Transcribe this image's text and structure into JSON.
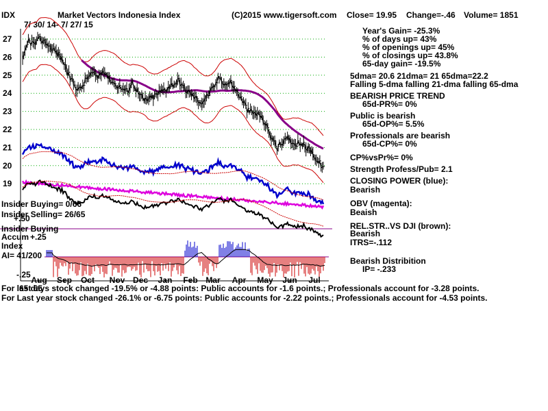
{
  "header": {
    "ticker": "IDX",
    "name": "Market Vectors Indonesia Index",
    "copyright": "(C)2015 www.tigersoft.com",
    "close": "Close=  19.95",
    "change": "Change=-.46",
    "volume": "Volume= 1851",
    "date_range": "7/ 30/ 14-  7/ 27/ 15"
  },
  "stats": {
    "years_gain": "Year's Gain= -25.3%",
    "pct_days_up": "% of days up= 43%",
    "pct_openings_up": "% of openings up= 45%",
    "pct_closings_up": "% of closings up= 43.8%",
    "gain_65day": "65-day gain= -19.5%",
    "dma": "5dma= 20.6  21dma= 21  65dma=22.2",
    "dma_trend": "Falling 5-dma  falling 21-dma  falling 65-dma",
    "price_trend_title": "BEARISH PRICE TREND",
    "price_trend_value": "65d-PR%= 0%",
    "public_title": "Public is bearish",
    "public_value": "65d-OP%= 5.5%",
    "pro_title": "Professionals are bearish",
    "pro_value": "65d-CP%= 0%",
    "cp_vs_pr": "CP%vsPr%=  0%",
    "strength": "Strength Profess/Pub= 2.1",
    "closing_power_title": "CLOSING POWER (blue):",
    "closing_power_value": "Bearish",
    "obv_title": "OBV (magenta):",
    "obv_value": "Beaish",
    "relstr_title": "REL.STR..VS DJI (brown):",
    "relstr_value": "Bearish",
    "itrs": "ITRS=-.112",
    "distribution_title": "Bearish Distribition",
    "distribution_value": "IP= -.233"
  },
  "left_labels": {
    "insider_buying_ratio": "Insider Buying= 0/66",
    "insider_selling_ratio": "Insider Selling= 26/65",
    "plus50": "+.50",
    "insider_buying": "Insider Buying",
    "accum": "Accum",
    "plus25": "+.25",
    "index": "Index",
    "ai": "AI= 41/200",
    "minus25": "-.25"
  },
  "footer": {
    "line1_prefix": "For last 65",
    "line1": " 65 days stock changed -19.5% or -4.88 points:  Public accounts for -1.6 points.;  Professionals account for -3.28 points.",
    "line2": "For Last year stock changed -26.1% or -6.75 points:  Public accounts for -2.22 points.;  Professionals account for -4.53 points."
  },
  "colors": {
    "price": "#000000",
    "band": "#cc0000",
    "ma65": "#880088",
    "ma21": "#cc0000",
    "closing_power": "#0000cc",
    "obv": "#dd00dd",
    "relstr": "#000000",
    "grid": "#00aa00",
    "accum_pos": "#0000cc",
    "accum_neg": "#cc0000"
  },
  "chart_data": {
    "type": "line",
    "title": "Market Vectors Indonesia Index",
    "y_ticks": [
      27,
      26,
      25,
      24,
      23,
      22,
      21,
      20,
      19
    ],
    "ylim": [
      18.7,
      27.4
    ],
    "months": [
      "Aug",
      "Sep",
      "Oct",
      "Nov",
      "Dec",
      "Jan",
      "Feb",
      "Mar",
      "Apr",
      "May",
      "Jun",
      "Jul"
    ],
    "series": [
      {
        "values": [
          25.8,
          26.9,
          26.7,
          27.0,
          26.8,
          26.5,
          26.2,
          25.8,
          25.0,
          24.4,
          24.2,
          24.8,
          25.1,
          24.9,
          25.3,
          24.8,
          24.5,
          24.3,
          24.1,
          24.6,
          24.0,
          23.6,
          23.7,
          23.9,
          24.1,
          24.3,
          24.5,
          24.7,
          24.2,
          24.0,
          23.7,
          23.5,
          23.9,
          24.3,
          24.9,
          24.5,
          24.6,
          24.1,
          23.6,
          23.0,
          22.9,
          22.8,
          22.3,
          21.6,
          21.0,
          21.3,
          21.5,
          21.2,
          21.3,
          21.0,
          20.8,
          20.2,
          19.95
        ]
      }
    ]
  }
}
